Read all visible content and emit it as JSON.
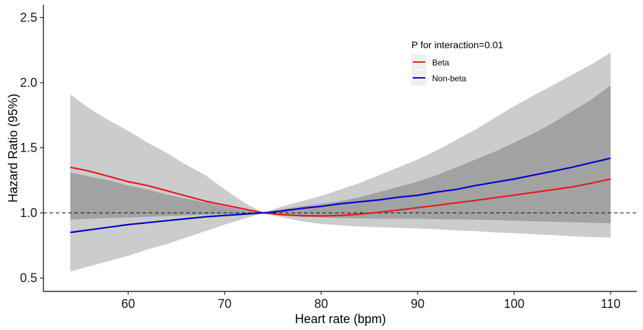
{
  "chart_data": {
    "type": "line",
    "title": "",
    "xlabel": "Heart rate (bpm)",
    "ylabel": "Hazard Ratio (95%)",
    "xlim": [
      51.2,
      112.7
    ],
    "ylim": [
      0.42,
      2.6
    ],
    "xticks": [
      60,
      70,
      80,
      90,
      100,
      110
    ],
    "yticks": [
      0.5,
      1.0,
      1.5,
      2.0,
      2.5
    ],
    "xtick_labels": [
      "60",
      "70",
      "80",
      "90",
      "100",
      "110"
    ],
    "ytick_labels": [
      "0.5",
      "1.0",
      "1.5",
      "2.0",
      "2.5"
    ],
    "reference_line": {
      "y": 1.0,
      "style": "dashed",
      "color": "#000000"
    },
    "grid": false,
    "legend": {
      "title": "P for interaction=0.01",
      "placement": "top-right",
      "entries": [
        {
          "label": "Beta",
          "color": "#e31a1c"
        },
        {
          "label": "Non-beta",
          "color": "#0000cc"
        }
      ]
    },
    "band_colors": {
      "union": "#cccccc",
      "overlap": "#a2a2a2"
    },
    "x": [
      54,
      56,
      58,
      60,
      62,
      64,
      66,
      68,
      70,
      72,
      74,
      76,
      78,
      80,
      82,
      84,
      86,
      88,
      90,
      92,
      94,
      96,
      98,
      100,
      102,
      104,
      106,
      108,
      110
    ],
    "series": [
      {
        "name": "Beta",
        "color": "#e31a1c",
        "values": [
          1.35,
          1.32,
          1.28,
          1.24,
          1.21,
          1.17,
          1.13,
          1.09,
          1.06,
          1.03,
          1.0,
          0.985,
          0.978,
          0.977,
          0.98,
          0.99,
          1.005,
          1.022,
          1.04,
          1.058,
          1.077,
          1.096,
          1.116,
          1.136,
          1.157,
          1.178,
          1.199,
          1.228,
          1.26
        ],
        "lower": [
          0.95,
          0.955,
          0.96,
          0.965,
          0.97,
          0.975,
          0.98,
          0.985,
          0.99,
          0.995,
          1.0,
          0.965,
          0.935,
          0.915,
          0.905,
          0.895,
          0.89,
          0.885,
          0.88,
          0.875,
          0.865,
          0.86,
          0.85,
          0.845,
          0.835,
          0.83,
          0.82,
          0.815,
          0.81
        ],
        "upper": [
          1.91,
          1.8,
          1.71,
          1.63,
          1.54,
          1.46,
          1.37,
          1.29,
          1.18,
          1.08,
          1.0,
          1.03,
          1.05,
          1.07,
          1.09,
          1.12,
          1.16,
          1.2,
          1.24,
          1.29,
          1.35,
          1.41,
          1.47,
          1.54,
          1.61,
          1.69,
          1.78,
          1.87,
          1.98
        ]
      },
      {
        "name": "Non-beta",
        "color": "#0000cc",
        "values": [
          0.85,
          0.87,
          0.89,
          0.91,
          0.925,
          0.94,
          0.955,
          0.97,
          0.98,
          0.99,
          1.0,
          1.015,
          1.035,
          1.05,
          1.07,
          1.085,
          1.1,
          1.12,
          1.135,
          1.16,
          1.18,
          1.21,
          1.235,
          1.26,
          1.29,
          1.32,
          1.35,
          1.385,
          1.42
        ],
        "lower": [
          0.55,
          0.59,
          0.63,
          0.67,
          0.72,
          0.76,
          0.81,
          0.86,
          0.91,
          0.955,
          1.0,
          0.985,
          0.97,
          0.965,
          0.96,
          0.958,
          0.955,
          0.955,
          0.955,
          0.952,
          0.95,
          0.948,
          0.945,
          0.94,
          0.935,
          0.932,
          0.928,
          0.924,
          0.92
        ],
        "upper": [
          1.31,
          1.28,
          1.25,
          1.21,
          1.18,
          1.14,
          1.11,
          1.08,
          1.05,
          1.02,
          1.0,
          1.05,
          1.09,
          1.13,
          1.18,
          1.23,
          1.29,
          1.35,
          1.41,
          1.48,
          1.56,
          1.64,
          1.73,
          1.82,
          1.9,
          1.98,
          2.06,
          2.14,
          2.23
        ]
      }
    ]
  }
}
